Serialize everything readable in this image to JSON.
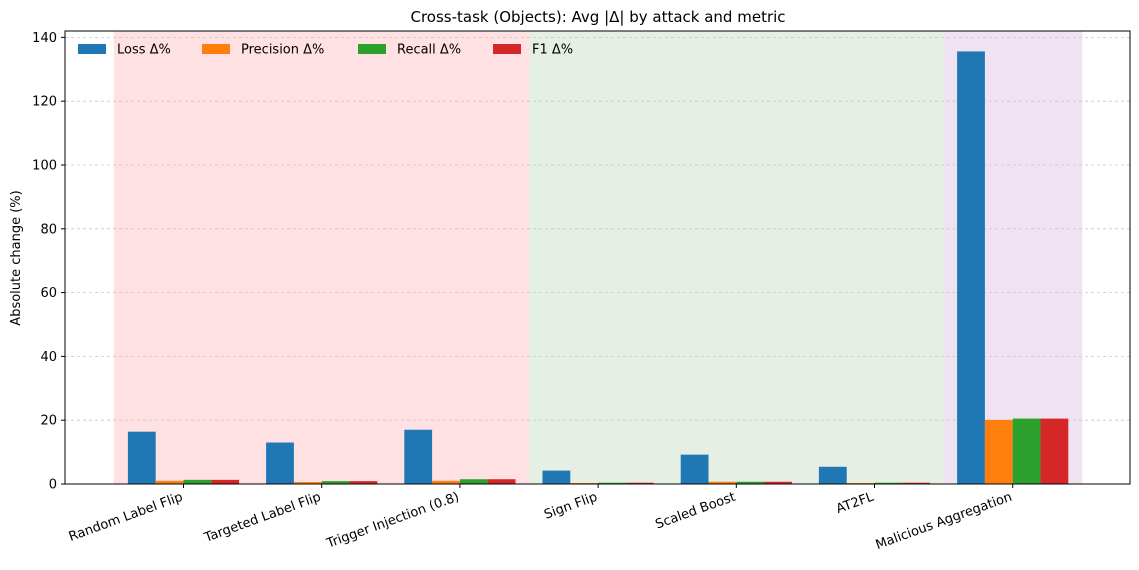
{
  "chart_data": {
    "type": "bar",
    "title": "Cross-task (Objects): Avg |Δ| by attack and metric",
    "xlabel": "",
    "ylabel": "Absolute change (%)",
    "ylim": [
      0,
      142
    ],
    "yticks": [
      0,
      20,
      40,
      60,
      80,
      100,
      120,
      140
    ],
    "grid": "y-dashed",
    "legend_position": "top-left",
    "categories": [
      "Random Label Flip",
      "Targeted Label Flip",
      "Trigger Injection (0.8)",
      "Sign Flip",
      "Scaled Boost",
      "AT2FL",
      "Malicious Aggregation"
    ],
    "series": [
      {
        "name": "Loss Δ%",
        "color": "#1f77b4",
        "values": [
          16.4,
          13.0,
          17.0,
          4.2,
          9.2,
          5.4,
          135.6
        ]
      },
      {
        "name": "Precision Δ%",
        "color": "#ff7f0e",
        "values": [
          1.0,
          0.6,
          1.0,
          0.3,
          0.7,
          0.3,
          20.1
        ]
      },
      {
        "name": "Recall Δ%",
        "color": "#2ca02c",
        "values": [
          1.3,
          0.9,
          1.5,
          0.4,
          0.7,
          0.4,
          20.5
        ]
      },
      {
        "name": "F1 Δ%",
        "color": "#d62728",
        "values": [
          1.3,
          0.9,
          1.5,
          0.4,
          0.7,
          0.4,
          20.5
        ]
      }
    ],
    "background_bands": [
      {
        "from_category": 0,
        "to_category": 2,
        "color": "#ffe0e3"
      },
      {
        "from_category": 3,
        "to_category": 5,
        "color": "#e5efe3"
      },
      {
        "from_category": 6,
        "to_category": 6,
        "color": "#efe3f1"
      }
    ]
  }
}
